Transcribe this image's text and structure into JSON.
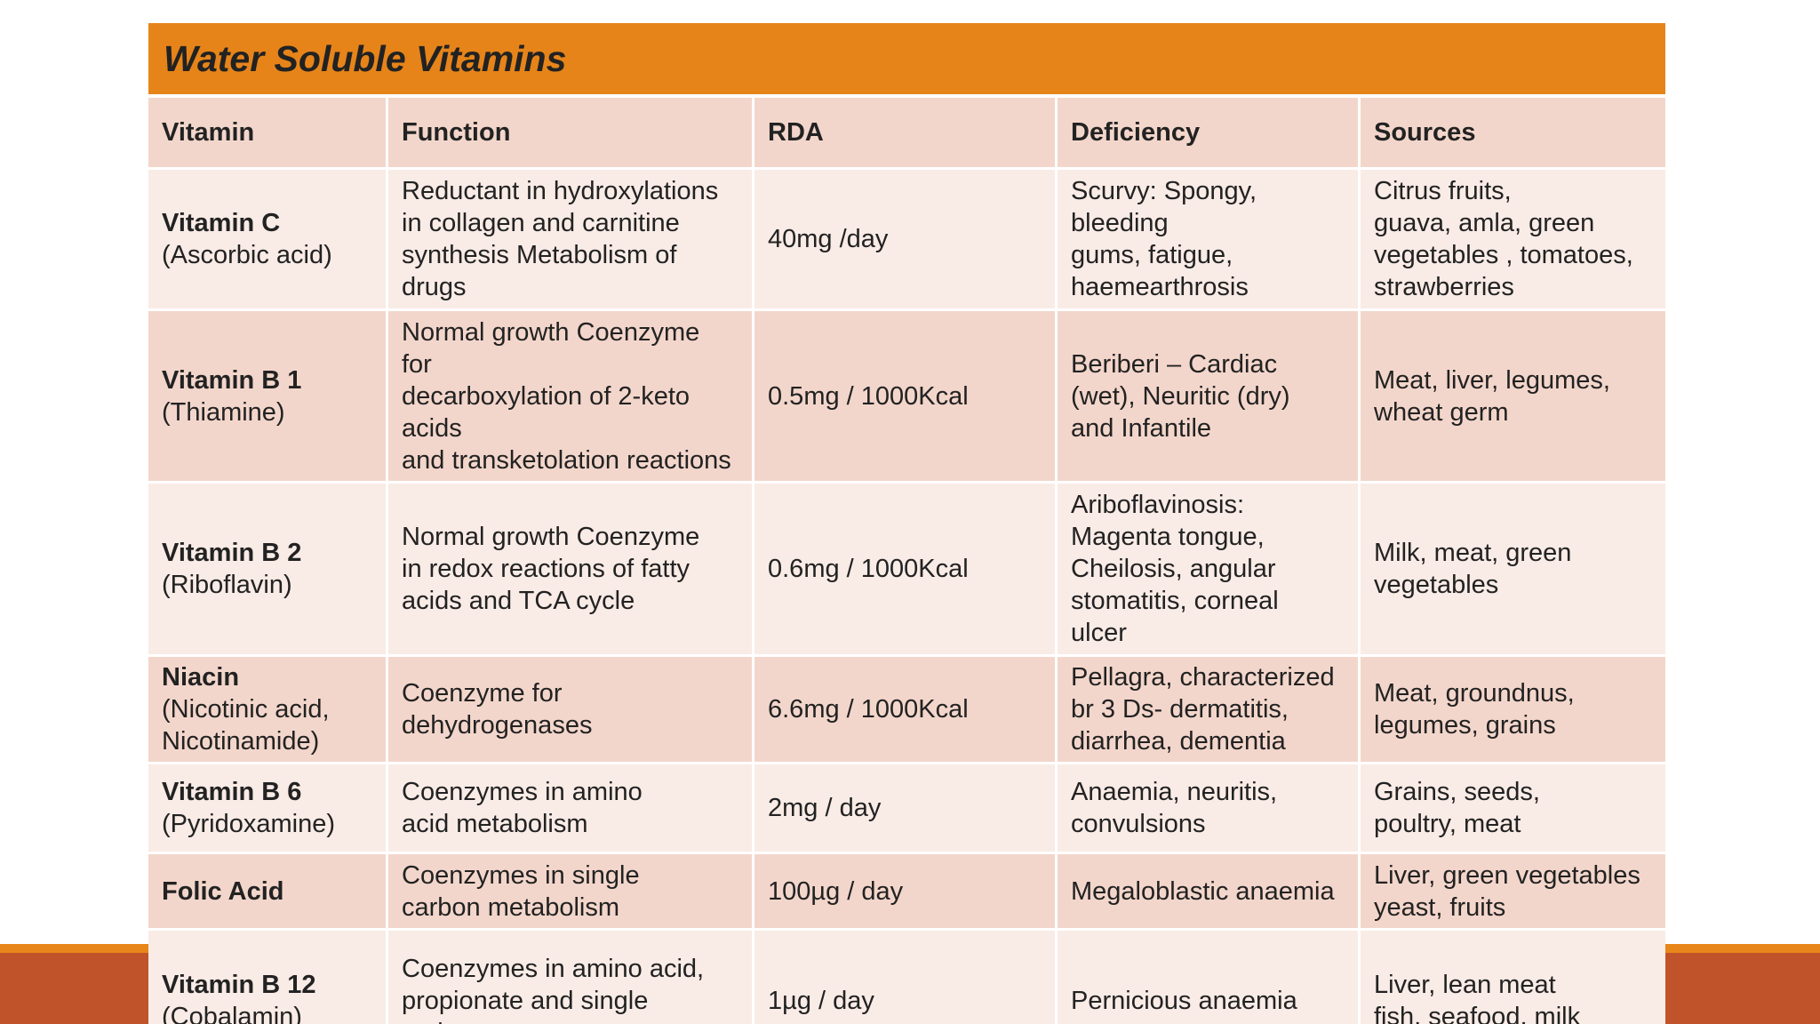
{
  "title": "Water Soluble Vitamins",
  "headers": [
    "Vitamin",
    "Function",
    "RDA",
    "Deficiency",
    "Sources"
  ],
  "rows": [
    {
      "name": "Vitamin C",
      "sub": "(Ascorbic acid)",
      "function": "Reductant in hydroxylations\nin collagen and carnitine\nsynthesis Metabolism of\ndrugs",
      "rda": "40mg /day",
      "deficiency": "Scurvy: Spongy,\nbleeding\ngums, fatigue,\nhaemearthrosis",
      "sources": "Citrus fruits,\nguava, amla, green\nvegetables , tomatoes,\nstrawberries"
    },
    {
      "name": "Vitamin B 1",
      "sub": "(Thiamine)",
      "function": "Normal growth Coenzyme\nfor\ndecarboxylation of 2-keto\nacids\nand transketolation reactions",
      "rda": "0.5mg / 1000Kcal",
      "deficiency": "Beriberi – Cardiac\n(wet), Neuritic (dry)\nand Infantile",
      "sources": "Meat, liver, legumes,\nwheat germ"
    },
    {
      "name": "Vitamin B 2",
      "sub": "(Riboflavin)",
      "function": "Normal growth Coenzyme\nin redox reactions of fatty\nacids and TCA cycle",
      "rda": "0.6mg / 1000Kcal",
      "deficiency": "Ariboflavinosis:\nMagenta tongue,\nCheilosis, angular\nstomatitis, corneal\nulcer",
      "sources": "Milk, meat, green\nvegetables"
    },
    {
      "name": "Niacin",
      "sub": "(Nicotinic acid,\nNicotinamide)",
      "function": "Coenzyme for\ndehydrogenases",
      "rda": "6.6mg / 1000Kcal",
      "deficiency": "Pellagra, characterized\nbr 3 Ds- dermatitis,\ndiarrhea, dementia",
      "sources": "Meat, groundnus,\nlegumes, grains"
    },
    {
      "name": "Vitamin B 6",
      "sub": "(Pyridoxamine)",
      "function": "Coenzymes in amino\nacid metabolism",
      "rda": "2mg / day",
      "deficiency": "Anaemia, neuritis,\nconvulsions",
      "sources": "Grains, seeds,\npoultry, meat"
    },
    {
      "name": "Folic Acid",
      "sub": "",
      "function": "Coenzymes in single\ncarbon metabolism",
      "rda": "100µg / day",
      "deficiency": "Megaloblastic anaemia",
      "sources": "Liver, green vegetables\nyeast, fruits"
    },
    {
      "name": "Vitamin B 12",
      "sub": "(Cobalamin)",
      "function": "Coenzymes in amino acid,\npropionate and single\ncarbon",
      "rda": "1µg / day",
      "deficiency": "Pernicious anaemia",
      "sources": "Liver, lean meat\nfish, seafood, milk"
    }
  ],
  "colors": {
    "title_bar": "#e6841a",
    "header_row": "#f3d6cb",
    "row_light": "#f9ebe6",
    "row_dark": "#f3d6cb",
    "bottom_band": "#c0532a"
  }
}
